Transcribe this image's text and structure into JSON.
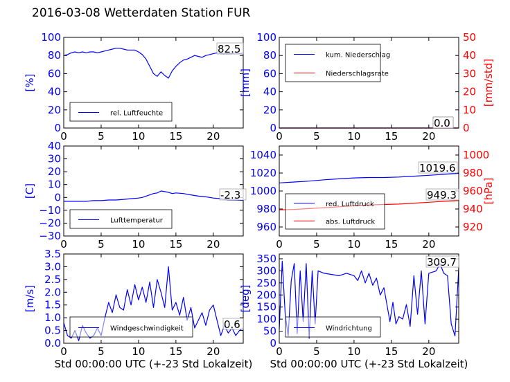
{
  "title": "2016-03-08 Wetterdaten Station FUR",
  "colors": {
    "left_axis": "#0000ff",
    "right_axis": "#ff0000",
    "series_blue": "#0000ff",
    "series_red": "#ff0000"
  },
  "chart_data": [
    {
      "type": "line",
      "id": "humidity",
      "ylabel": "[%]",
      "xlabel": "",
      "xlim": [
        0,
        24
      ],
      "ylim": [
        0,
        100
      ],
      "xticks": [
        "0",
        "5",
        "10",
        "15",
        "20"
      ],
      "yticks": [
        "0",
        "20",
        "40",
        "60",
        "80",
        "100"
      ],
      "legend": {
        "placement": "bottom-left",
        "entries": [
          "rel. Luftfeuchte"
        ]
      },
      "annotations": [
        "82.5"
      ],
      "series": [
        {
          "name": "rel. Luftfeuchte",
          "color": "#0000ff",
          "x": [
            0,
            0.5,
            1,
            1.5,
            2,
            2.5,
            3,
            3.5,
            4,
            4.5,
            5,
            5.5,
            6,
            6.5,
            7,
            7.5,
            8,
            8.5,
            9,
            9.5,
            10,
            10.5,
            11,
            11.5,
            12,
            12.5,
            13,
            13.5,
            14,
            14.5,
            15,
            15.5,
            16,
            16.5,
            17,
            17.5,
            18,
            18.5,
            19,
            19.5,
            20,
            20.5,
            21,
            21.5,
            22,
            22.5,
            23,
            23.5,
            24
          ],
          "y": [
            80,
            81,
            83,
            84,
            83,
            84,
            83,
            84,
            84,
            83,
            84,
            85,
            86,
            87,
            88,
            88,
            87,
            86,
            86,
            86,
            84,
            81,
            76,
            68,
            60,
            57,
            62,
            58,
            55,
            63,
            68,
            72,
            75,
            76,
            78,
            80,
            79,
            78,
            80,
            81,
            82,
            83,
            82,
            82,
            82,
            82,
            83,
            82,
            83
          ]
        }
      ]
    },
    {
      "type": "line",
      "id": "precipitation",
      "ylabel": "[mm]",
      "ylabel_right": "[mm/std]",
      "xlim": [
        0,
        24
      ],
      "ylim": [
        0,
        100
      ],
      "ylim_right": [
        0,
        50
      ],
      "xticks": [
        "0",
        "5",
        "10",
        "15",
        "20"
      ],
      "yticks": [
        "0",
        "20",
        "40",
        "60",
        "80",
        "100"
      ],
      "yticks_right": [
        "0",
        "10",
        "20",
        "30",
        "40",
        "50"
      ],
      "legend": {
        "placement": "top-left",
        "entries": [
          "kum. Niederschlag",
          "Niederschlagsrate"
        ]
      },
      "annotations": [
        "0.0",
        "0.0"
      ],
      "series": [
        {
          "name": "kum. Niederschlag",
          "color": "#0000ff",
          "axis": "left",
          "x": [
            0,
            24
          ],
          "y": [
            0,
            0
          ]
        },
        {
          "name": "Niederschlagsrate",
          "color": "#ff0000",
          "axis": "right",
          "x": [
            0,
            24
          ],
          "y": [
            0,
            0
          ]
        }
      ]
    },
    {
      "type": "line",
      "id": "temperature",
      "ylabel": "[C]",
      "xlim": [
        0,
        24
      ],
      "ylim": [
        -30,
        40
      ],
      "xticks": [
        "0",
        "5",
        "10",
        "15",
        "20"
      ],
      "yticks": [
        "−30",
        "−20",
        "−10",
        "0",
        "10",
        "20",
        "30",
        "40"
      ],
      "legend": {
        "placement": "bottom-left",
        "entries": [
          "Lufttemperatur"
        ]
      },
      "annotations": [
        "-2.3"
      ],
      "series": [
        {
          "name": "Lufttemperatur",
          "color": "#0000ff",
          "x": [
            0,
            1,
            2,
            3,
            4,
            5,
            6,
            7,
            8,
            9,
            10,
            10.5,
            11,
            11.5,
            12,
            12.5,
            13,
            13.5,
            14,
            14.5,
            15,
            16,
            17,
            18,
            19,
            20,
            21,
            22,
            23,
            24
          ],
          "y": [
            -3,
            -3,
            -3,
            -3,
            -2.5,
            -2.5,
            -2,
            -2,
            -1.5,
            -1,
            -0.5,
            0,
            1,
            2,
            3,
            3.5,
            5,
            4.5,
            4,
            3,
            3.5,
            3,
            2,
            1,
            0.5,
            -0.5,
            -1,
            -2,
            -2,
            -2.3
          ]
        }
      ]
    },
    {
      "type": "line",
      "id": "pressure",
      "ylabel": "",
      "ylabel_right": "[hPa]",
      "xlim": [
        0,
        24
      ],
      "ylim": [
        950,
        1050
      ],
      "ylim_right": [
        910,
        1010
      ],
      "xticks": [
        "0",
        "5",
        "10",
        "15",
        "20"
      ],
      "yticks": [
        "960",
        "980",
        "1000",
        "1020",
        "1040"
      ],
      "yticks_right": [
        "920",
        "940",
        "960",
        "980",
        "1000"
      ],
      "legend": {
        "placement": "bottom-left",
        "entries": [
          "red. Luftdruck",
          "abs. Luftdruck"
        ]
      },
      "annotations": [
        "1019.6",
        "949.3"
      ],
      "series": [
        {
          "name": "red. Luftdruck",
          "color": "#0000ff",
          "axis": "left",
          "x": [
            0,
            2,
            4,
            6,
            8,
            10,
            12,
            14,
            16,
            18,
            20,
            22,
            24
          ],
          "y": [
            1009,
            1010,
            1011,
            1012.5,
            1013.5,
            1014.5,
            1015,
            1015,
            1015.5,
            1016.5,
            1017.5,
            1018.5,
            1019.6
          ]
        },
        {
          "name": "abs. Luftdruck",
          "color": "#ff0000",
          "axis": "right",
          "x": [
            0,
            2,
            4,
            6,
            8,
            10,
            12,
            14,
            16,
            18,
            20,
            22,
            24
          ],
          "y": [
            939,
            939.5,
            940.5,
            941.5,
            942.5,
            943.5,
            944.5,
            945,
            945.5,
            946.5,
            947.5,
            948.5,
            949.3
          ]
        }
      ]
    },
    {
      "type": "line",
      "id": "wind_speed",
      "ylabel": "[m/s]",
      "xlabel": "Std 00:00:00 UTC (+-23 Std Lokalzeit)",
      "xlim": [
        0,
        24
      ],
      "ylim": [
        0,
        3.5
      ],
      "xticks": [
        "0",
        "5",
        "10",
        "15",
        "20"
      ],
      "yticks": [
        "0.0",
        "0.5",
        "1.0",
        "1.5",
        "2.0",
        "2.5",
        "3.0",
        "3.5"
      ],
      "legend": {
        "placement": "bottom-left",
        "entries": [
          "Windgeschwindigkeit"
        ]
      },
      "annotations": [
        "0.6"
      ],
      "series": [
        {
          "name": "Windgeschwindigkeit",
          "color": "#0000ff",
          "x": [
            0,
            0.5,
            1,
            1.5,
            2,
            2.5,
            3,
            3.5,
            4,
            4.5,
            5,
            5.5,
            6,
            6.5,
            7,
            7.5,
            8,
            8.5,
            9,
            9.5,
            10,
            10.5,
            11,
            11.5,
            12,
            12.5,
            13,
            13.5,
            14,
            14.5,
            15,
            15.5,
            16,
            16.5,
            17,
            17.5,
            18,
            18.5,
            19,
            19.5,
            20,
            20.5,
            21,
            21.5,
            22,
            22.5,
            23,
            23.5,
            24
          ],
          "y": [
            0.8,
            0.3,
            0.2,
            0.5,
            0.1,
            0.7,
            0.4,
            0.2,
            0.3,
            0.6,
            0.3,
            1.0,
            1.6,
            1.2,
            1.9,
            1.4,
            1.3,
            2.1,
            1.5,
            2.3,
            1.7,
            2.2,
            1.6,
            2.4,
            1.4,
            2.5,
            2.0,
            1.4,
            3.0,
            1.3,
            1.6,
            1.1,
            1.8,
            0.9,
            1.4,
            0.6,
            0.9,
            1.2,
            0.7,
            1.3,
            1.5,
            0.9,
            0.3,
            0.7,
            0.4,
            0.6,
            0.3,
            0.5,
            0.6
          ]
        }
      ]
    },
    {
      "type": "line",
      "id": "wind_direction",
      "ylabel": "[deg]",
      "xlabel": "Std 00:00:00 UTC (+-23 Std Lokalzeit)",
      "xlim": [
        0,
        24
      ],
      "ylim": [
        0,
        370
      ],
      "xticks": [
        "0",
        "5",
        "10",
        "15",
        "20"
      ],
      "yticks": [
        "0",
        "50",
        "100",
        "150",
        "200",
        "250",
        "300",
        "350"
      ],
      "legend": {
        "placement": "bottom-left",
        "entries": [
          "Windrichtung"
        ]
      },
      "annotations": [
        "309.7"
      ],
      "series": [
        {
          "name": "Windrichtung",
          "color": "#0000ff",
          "x": [
            0,
            0.4,
            0.8,
            1.2,
            1.6,
            2,
            2.4,
            2.8,
            3.2,
            3.6,
            4,
            4.4,
            4.8,
            5.2,
            6,
            7,
            8,
            9,
            10,
            10.5,
            11,
            11.5,
            12,
            12.5,
            13,
            13.5,
            14,
            14.4,
            14.8,
            15.2,
            15.6,
            16,
            16.5,
            17,
            17.5,
            18,
            18.5,
            19,
            19.5,
            20,
            21,
            21.5,
            22,
            22.5,
            23,
            23.5,
            24
          ],
          "y": [
            60,
            340,
            120,
            30,
            260,
            330,
            40,
            300,
            90,
            330,
            20,
            300,
            80,
            300,
            290,
            285,
            280,
            290,
            280,
            260,
            300,
            250,
            290,
            240,
            270,
            200,
            230,
            160,
            90,
            170,
            80,
            110,
            100,
            160,
            70,
            280,
            120,
            300,
            80,
            290,
            300,
            330,
            290,
            280,
            80,
            30,
            309.7
          ]
        }
      ]
    }
  ]
}
